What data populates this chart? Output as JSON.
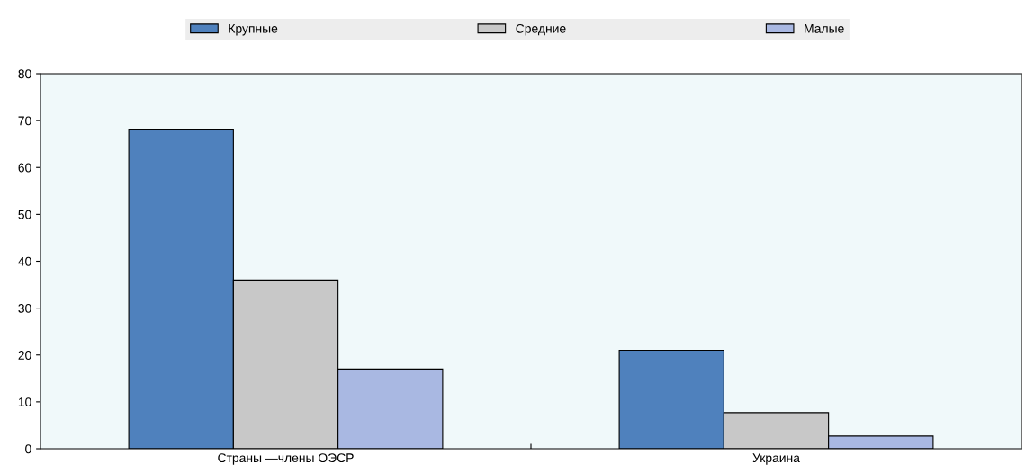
{
  "chart_data": {
    "type": "bar",
    "categories": [
      "Страны —члены ОЭСР",
      "Украина"
    ],
    "series": [
      {
        "name": "Крупные",
        "color": "#4f81bd",
        "values": [
          68,
          21
        ]
      },
      {
        "name": "Средние",
        "color": "#c8c8c8",
        "values": [
          36,
          7.7
        ]
      },
      {
        "name": "Малые",
        "color": "#a9b8e2",
        "values": [
          17,
          2.7
        ]
      }
    ],
    "ylim": [
      0,
      80
    ],
    "yticks": [
      0,
      10,
      20,
      30,
      40,
      50,
      60,
      70,
      80
    ],
    "grid": false,
    "legend": "top"
  }
}
